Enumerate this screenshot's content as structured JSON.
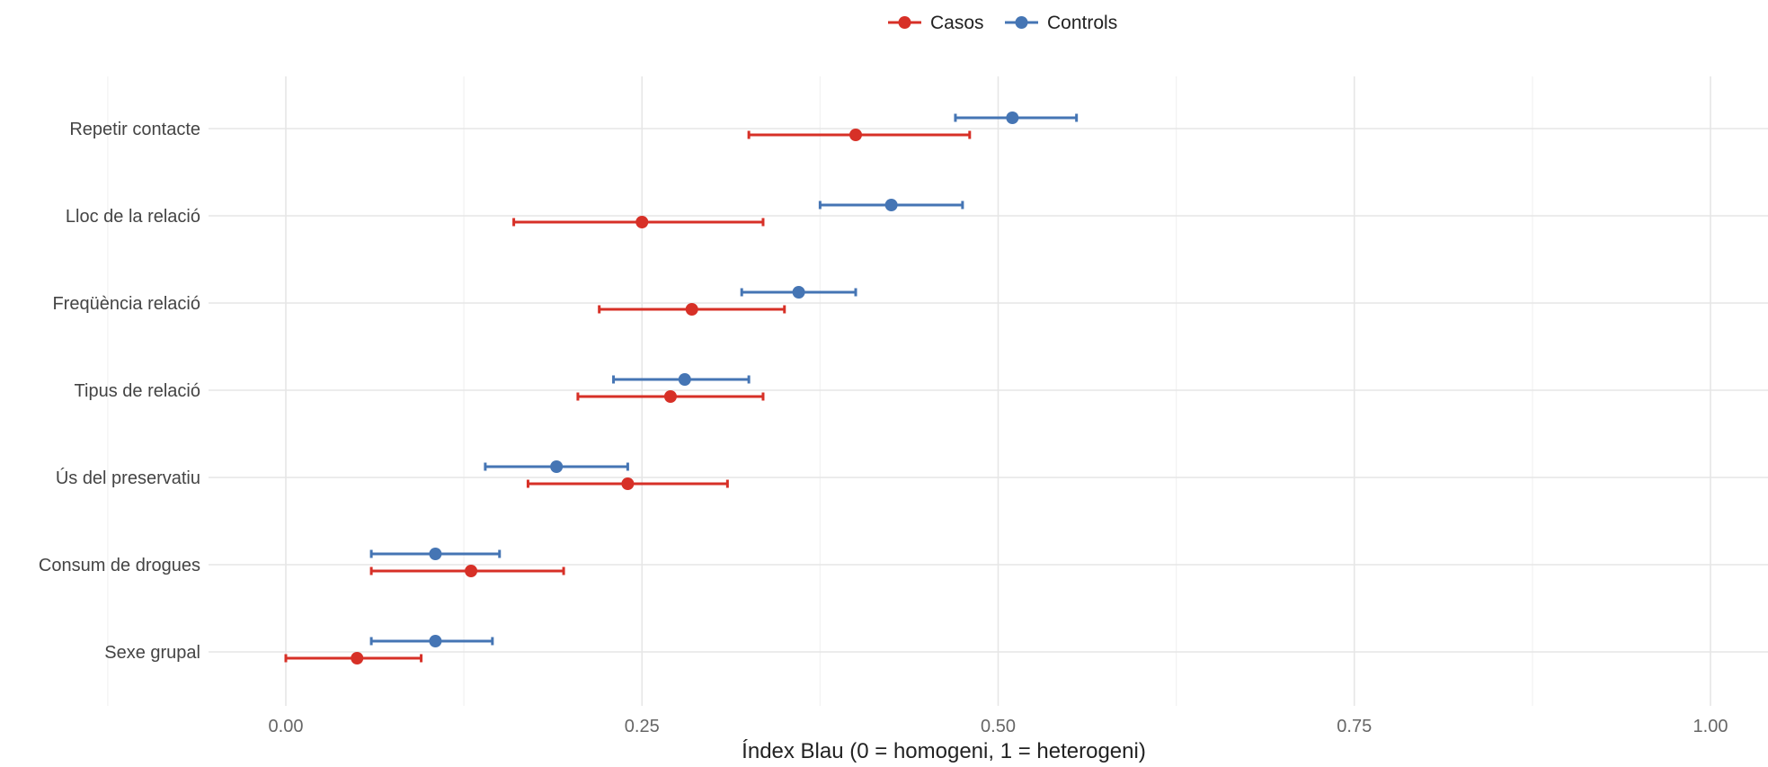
{
  "chart_data": {
    "type": "dot-errorbar",
    "orientation": "horizontal",
    "xlabel": "Índex Blau (0 = homogeni, 1 = heterogeni)",
    "ylabel": "",
    "xlim": [
      -0.1,
      1.05
    ],
    "x_ticks": [
      "0.00",
      "0.25",
      "0.50",
      "0.75",
      "1.00"
    ],
    "x_tick_values": [
      0,
      0.25,
      0.5,
      0.75,
      1.0
    ],
    "grid": true,
    "legend_position": "top",
    "categories": [
      "Sexe grupal",
      "Consum de drogues",
      "Ús del preservatiu",
      "Tipus de relació",
      "Freqüència relació",
      "Lloc de la relació",
      "Repetir contacte"
    ],
    "series": [
      {
        "name": "Casos",
        "color": "#d73027",
        "values": [
          0.05,
          0.13,
          0.24,
          0.27,
          0.285,
          0.25,
          0.4
        ],
        "lower": [
          0.0,
          0.06,
          0.17,
          0.205,
          0.22,
          0.16,
          0.325
        ],
        "upper": [
          0.095,
          0.195,
          0.31,
          0.335,
          0.35,
          0.335,
          0.48
        ]
      },
      {
        "name": "Controls",
        "color": "#4575b4",
        "values": [
          0.105,
          0.105,
          0.19,
          0.28,
          0.36,
          0.425,
          0.51
        ],
        "lower": [
          0.06,
          0.06,
          0.14,
          0.23,
          0.32,
          0.375,
          0.47
        ],
        "upper": [
          0.145,
          0.15,
          0.24,
          0.325,
          0.4,
          0.475,
          0.555
        ]
      }
    ]
  }
}
